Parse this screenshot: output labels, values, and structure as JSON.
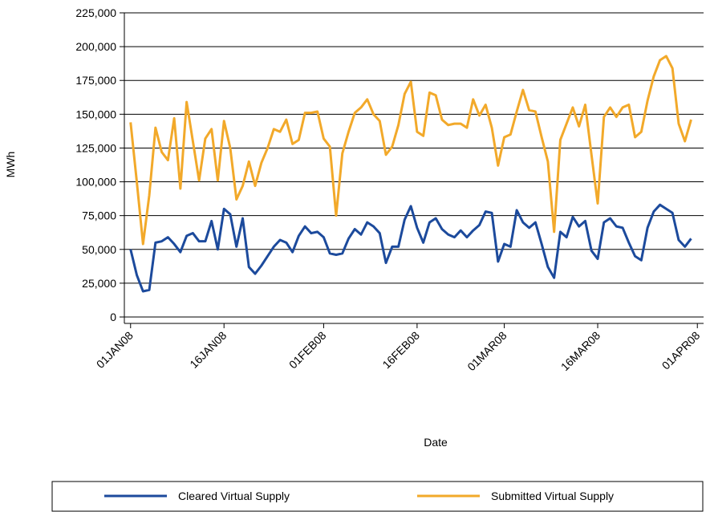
{
  "chart_data": {
    "type": "line",
    "x": [
      "2008-01-01",
      "2008-01-02",
      "2008-01-03",
      "2008-01-04",
      "2008-01-05",
      "2008-01-06",
      "2008-01-07",
      "2008-01-08",
      "2008-01-09",
      "2008-01-10",
      "2008-01-11",
      "2008-01-12",
      "2008-01-13",
      "2008-01-14",
      "2008-01-15",
      "2008-01-16",
      "2008-01-17",
      "2008-01-18",
      "2008-01-19",
      "2008-01-20",
      "2008-01-21",
      "2008-01-22",
      "2008-01-23",
      "2008-01-24",
      "2008-01-25",
      "2008-01-26",
      "2008-01-27",
      "2008-01-28",
      "2008-01-29",
      "2008-01-30",
      "2008-01-31",
      "2008-02-01",
      "2008-02-02",
      "2008-02-03",
      "2008-02-04",
      "2008-02-05",
      "2008-02-06",
      "2008-02-07",
      "2008-02-08",
      "2008-02-09",
      "2008-02-10",
      "2008-02-11",
      "2008-02-12",
      "2008-02-13",
      "2008-02-14",
      "2008-02-15",
      "2008-02-16",
      "2008-02-17",
      "2008-02-18",
      "2008-02-19",
      "2008-02-20",
      "2008-02-21",
      "2008-02-22",
      "2008-02-23",
      "2008-02-24",
      "2008-02-25",
      "2008-02-26",
      "2008-02-27",
      "2008-02-28",
      "2008-02-29",
      "2008-03-01",
      "2008-03-02",
      "2008-03-03",
      "2008-03-04",
      "2008-03-05",
      "2008-03-06",
      "2008-03-07",
      "2008-03-08",
      "2008-03-09",
      "2008-03-10",
      "2008-03-11",
      "2008-03-12",
      "2008-03-13",
      "2008-03-14",
      "2008-03-15",
      "2008-03-16",
      "2008-03-17",
      "2008-03-18",
      "2008-03-19",
      "2008-03-20",
      "2008-03-21",
      "2008-03-22",
      "2008-03-23",
      "2008-03-24",
      "2008-03-25",
      "2008-03-26",
      "2008-03-27",
      "2008-03-28",
      "2008-03-29",
      "2008-03-30",
      "2008-03-31"
    ],
    "series": [
      {
        "name": "Cleared Virtual Supply",
        "color": "#1c4a9c",
        "values": [
          50000,
          31000,
          19000,
          20000,
          55000,
          56000,
          59000,
          54000,
          48000,
          60000,
          62000,
          56000,
          56000,
          71000,
          50000,
          80000,
          76000,
          52000,
          73000,
          37000,
          32000,
          38000,
          45000,
          52000,
          57000,
          55000,
          48000,
          60000,
          67000,
          62000,
          63000,
          59000,
          47000,
          46000,
          47000,
          58000,
          65000,
          61000,
          70000,
          67000,
          62000,
          40000,
          52000,
          52000,
          72000,
          82000,
          66000,
          55000,
          70000,
          73000,
          65000,
          61000,
          59000,
          64000,
          59000,
          64000,
          68000,
          78000,
          77000,
          41000,
          54000,
          52000,
          79000,
          70000,
          66000,
          70000,
          54000,
          37000,
          29000,
          63000,
          59000,
          74000,
          67000,
          71000,
          49000,
          43000,
          70000,
          73000,
          67000,
          66000,
          55000,
          45000,
          42000,
          66000,
          78000,
          83000,
          80000,
          77000,
          57000,
          52000,
          58000
        ]
      },
      {
        "name": "Submitted Virtual Supply",
        "color": "#f2a92a",
        "values": [
          144000,
          100000,
          54000,
          90000,
          140000,
          122000,
          116000,
          147000,
          95000,
          159000,
          130000,
          101000,
          132000,
          139000,
          101000,
          145000,
          125000,
          87000,
          97000,
          115000,
          97000,
          114000,
          125000,
          139000,
          137000,
          146000,
          128000,
          131000,
          151000,
          151000,
          152000,
          132000,
          126000,
          75000,
          121000,
          137000,
          151000,
          155000,
          161000,
          150000,
          145000,
          120000,
          126000,
          142000,
          165000,
          174000,
          137000,
          134000,
          166000,
          164000,
          146000,
          142000,
          143000,
          143000,
          140000,
          161000,
          149000,
          157000,
          140000,
          112000,
          133000,
          135000,
          152000,
          168000,
          153000,
          152000,
          133000,
          115000,
          63000,
          131000,
          143000,
          155000,
          141000,
          157000,
          120000,
          84000,
          148000,
          155000,
          148000,
          155000,
          157000,
          133000,
          137000,
          160000,
          178000,
          190000,
          193000,
          184000,
          143000,
          130000,
          146000
        ]
      }
    ],
    "xlim": [
      "2007-12-31",
      "2008-04-02"
    ],
    "xticks": [
      {
        "value": "2008-01-01",
        "label": "01JAN08"
      },
      {
        "value": "2008-01-16",
        "label": "16JAN08"
      },
      {
        "value": "2008-02-01",
        "label": "01FEB08"
      },
      {
        "value": "2008-02-16",
        "label": "16FEB08"
      },
      {
        "value": "2008-03-01",
        "label": "01MAR08"
      },
      {
        "value": "2008-03-16",
        "label": "16MAR08"
      },
      {
        "value": "2008-04-01",
        "label": "01APR08"
      }
    ],
    "ylim": [
      0,
      225000
    ],
    "yticks": [
      0,
      {
        "value": 25000,
        "label": "25,000"
      },
      {
        "value": 50000,
        "label": "50,000"
      },
      {
        "value": 75000,
        "label": "75,000"
      },
      {
        "value": 100000,
        "label": "100,000"
      },
      {
        "value": 125000,
        "label": "125,000"
      },
      {
        "value": 150000,
        "label": "150,000"
      },
      {
        "value": 175000,
        "label": "175,000"
      },
      {
        "value": 200000,
        "label": "200,000"
      },
      {
        "value": 225000,
        "label": "225,000"
      }
    ],
    "xlabel": "Date",
    "ylabel": "MWh",
    "grid": true,
    "legend": "bottom"
  }
}
